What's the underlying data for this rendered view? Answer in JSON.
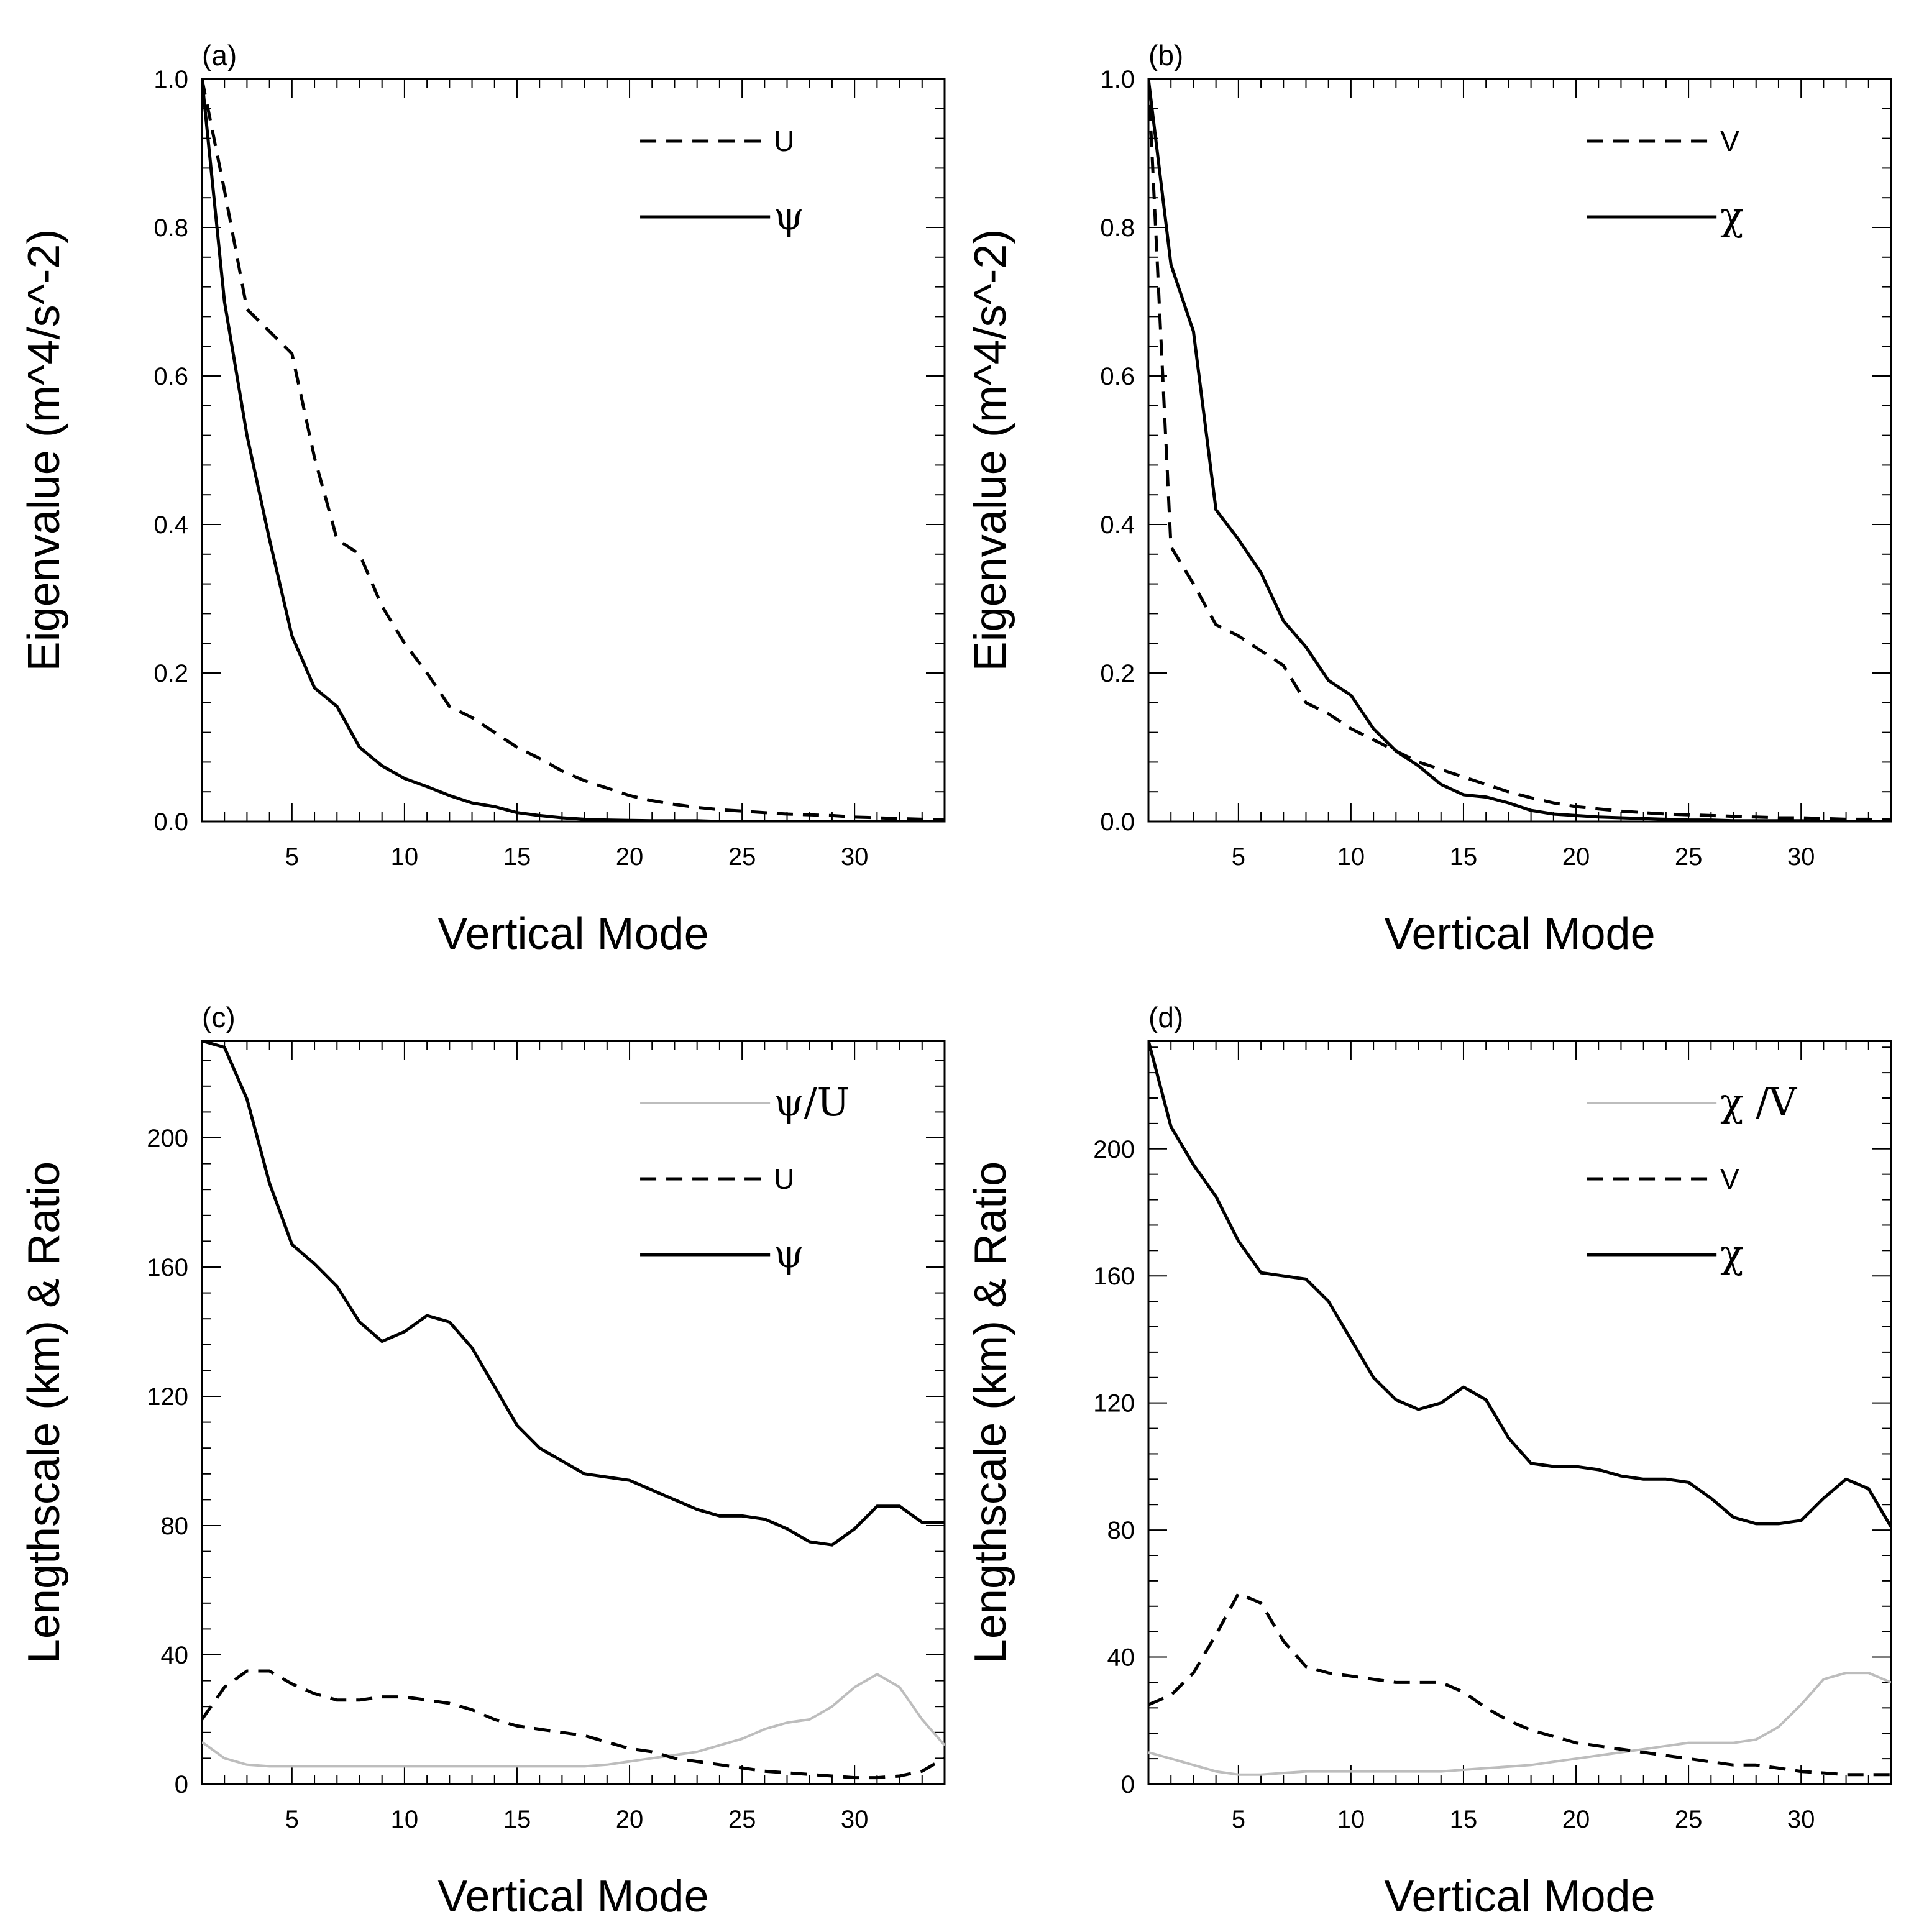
{
  "chart_data": [
    {
      "type": "line",
      "panel_label": "(a)",
      "xlabel": "Vertical Mode",
      "ylabel": "Eigenvalue (m^4/s^-2)",
      "xlim": [
        1,
        34
      ],
      "ylim": [
        0,
        1
      ],
      "x_ticks": [
        5,
        10,
        15,
        20,
        25,
        30
      ],
      "x_tick_labels": [
        "5",
        "10",
        "15",
        "20",
        "25",
        "30"
      ],
      "y_ticks": [
        0,
        0.2,
        0.4,
        0.6,
        0.8,
        1.0
      ],
      "y_tick_labels": [
        "0.0",
        "0.2",
        "0.4",
        "0.6",
        "0.8",
        "1.0"
      ],
      "legend_position": "top-right",
      "series": [
        {
          "name": "U",
          "legend_label": "U",
          "style": "dashed",
          "color": "#000000",
          "x": [
            1,
            2,
            3,
            4,
            5,
            6,
            7,
            8,
            9,
            10,
            11,
            12,
            13,
            14,
            15,
            16,
            17,
            18,
            19,
            20,
            21,
            22,
            23,
            24,
            25,
            26,
            27,
            28,
            29,
            30,
            31,
            32,
            33,
            34
          ],
          "values": [
            1.0,
            0.85,
            0.69,
            0.66,
            0.63,
            0.49,
            0.38,
            0.36,
            0.29,
            0.24,
            0.2,
            0.155,
            0.14,
            0.12,
            0.1,
            0.085,
            0.068,
            0.055,
            0.045,
            0.035,
            0.028,
            0.023,
            0.019,
            0.016,
            0.014,
            0.012,
            0.01,
            0.009,
            0.008,
            0.006,
            0.005,
            0.004,
            0.003,
            0.002
          ]
        },
        {
          "name": "ψ",
          "legend_label": "ψ",
          "style": "solid",
          "color": "#000000",
          "x": [
            1,
            2,
            3,
            4,
            5,
            6,
            7,
            8,
            9,
            10,
            11,
            12,
            13,
            14,
            15,
            16,
            17,
            18,
            19,
            20,
            21,
            22,
            23,
            24,
            25,
            26,
            27,
            28,
            29,
            30,
            31,
            32,
            33,
            34
          ],
          "values": [
            1.0,
            0.7,
            0.52,
            0.38,
            0.25,
            0.18,
            0.155,
            0.1,
            0.075,
            0.058,
            0.047,
            0.035,
            0.025,
            0.02,
            0.012,
            0.008,
            0.005,
            0.003,
            0.002,
            0.0015,
            0.001,
            0.001,
            0.001,
            0.0,
            0.0,
            0.0,
            0.0,
            0.0,
            0.0,
            0.0,
            0.0,
            0.0,
            0.0,
            0.0
          ]
        }
      ]
    },
    {
      "type": "line",
      "panel_label": "(b)",
      "xlabel": "Vertical Mode",
      "ylabel": "Eigenvalue (m^4/s^-2)",
      "xlim": [
        1,
        34
      ],
      "ylim": [
        0,
        1
      ],
      "x_ticks": [
        5,
        10,
        15,
        20,
        25,
        30
      ],
      "x_tick_labels": [
        "5",
        "10",
        "15",
        "20",
        "25",
        "30"
      ],
      "y_ticks": [
        0,
        0.2,
        0.4,
        0.6,
        0.8,
        1.0
      ],
      "y_tick_labels": [
        "0.0",
        "0.2",
        "0.4",
        "0.6",
        "0.8",
        "1.0"
      ],
      "legend_position": "top-right",
      "series": [
        {
          "name": "V",
          "legend_label": "V",
          "style": "dashed",
          "color": "#000000",
          "x": [
            1,
            2,
            3,
            4,
            5,
            6,
            7,
            8,
            9,
            10,
            11,
            12,
            13,
            14,
            15,
            16,
            17,
            18,
            19,
            20,
            21,
            22,
            23,
            24,
            25,
            26,
            27,
            28,
            29,
            30,
            31,
            32,
            33,
            34
          ],
          "values": [
            1.0,
            0.37,
            0.32,
            0.265,
            0.25,
            0.23,
            0.21,
            0.16,
            0.145,
            0.125,
            0.11,
            0.095,
            0.08,
            0.07,
            0.06,
            0.05,
            0.04,
            0.032,
            0.025,
            0.02,
            0.017,
            0.014,
            0.012,
            0.01,
            0.009,
            0.008,
            0.007,
            0.006,
            0.005,
            0.005,
            0.004,
            0.003,
            0.003,
            0.002
          ]
        },
        {
          "name": "χ",
          "legend_label": "χ",
          "style": "solid",
          "color": "#000000",
          "x": [
            1,
            2,
            3,
            4,
            5,
            6,
            7,
            8,
            9,
            10,
            11,
            12,
            13,
            14,
            15,
            16,
            17,
            18,
            19,
            20,
            21,
            22,
            23,
            24,
            25,
            26,
            27,
            28,
            29,
            30,
            31,
            32,
            33,
            34
          ],
          "values": [
            1.0,
            0.75,
            0.66,
            0.42,
            0.38,
            0.335,
            0.27,
            0.235,
            0.19,
            0.17,
            0.125,
            0.095,
            0.075,
            0.05,
            0.036,
            0.033,
            0.025,
            0.015,
            0.01,
            0.008,
            0.006,
            0.005,
            0.004,
            0.003,
            0.002,
            0.002,
            0.001,
            0.001,
            0.001,
            0.001,
            0.0,
            0.0,
            0.0,
            0.0
          ]
        }
      ]
    },
    {
      "type": "line",
      "panel_label": "(c)",
      "xlabel": "Vertical Mode",
      "ylabel": "Lengthscale (km) & Ratio",
      "xlim": [
        1,
        34
      ],
      "ylim": [
        0,
        230
      ],
      "x_ticks": [
        5,
        10,
        15,
        20,
        25,
        30
      ],
      "x_tick_labels": [
        "5",
        "10",
        "15",
        "20",
        "25",
        "30"
      ],
      "y_ticks": [
        0,
        40,
        80,
        120,
        160,
        200
      ],
      "y_tick_labels": [
        "0",
        "40",
        "80",
        "120",
        "160",
        "200"
      ],
      "legend_position": "top-right",
      "series": [
        {
          "name": "ψ/U",
          "legend_label": "ψ/U",
          "style": "solid",
          "color": "#bdbdbd",
          "x": [
            1,
            2,
            3,
            4,
            5,
            6,
            7,
            8,
            9,
            10,
            11,
            12,
            13,
            14,
            15,
            16,
            17,
            18,
            19,
            20,
            21,
            22,
            23,
            24,
            25,
            26,
            27,
            28,
            29,
            30,
            31,
            32,
            33,
            34
          ],
          "values": [
            13,
            8,
            6,
            5.5,
            5.5,
            5.5,
            5.5,
            5.5,
            5.5,
            5.5,
            5.5,
            5.5,
            5.5,
            5.5,
            5.5,
            5.5,
            5.5,
            5.5,
            6,
            7,
            8,
            9,
            10,
            12,
            14,
            17,
            19,
            20,
            24,
            30,
            34,
            30,
            20,
            12
          ]
        },
        {
          "name": "U",
          "legend_label": "U",
          "style": "dashed",
          "color": "#000000",
          "x": [
            1,
            2,
            3,
            4,
            5,
            6,
            7,
            8,
            9,
            10,
            11,
            12,
            13,
            14,
            15,
            16,
            17,
            18,
            19,
            20,
            21,
            22,
            23,
            24,
            25,
            26,
            27,
            28,
            29,
            30,
            31,
            32,
            33,
            34
          ],
          "values": [
            20,
            30,
            35,
            35,
            31,
            28,
            26,
            26,
            27,
            27,
            26,
            25,
            23,
            20,
            18,
            17,
            16,
            15,
            13,
            11,
            10,
            8,
            7,
            6,
            5,
            4,
            3.5,
            3,
            2.5,
            2,
            2,
            2.5,
            4,
            8
          ]
        },
        {
          "name": "ψ",
          "legend_label": "ψ",
          "style": "solid",
          "color": "#000000",
          "x": [
            1,
            2,
            3,
            4,
            5,
            6,
            7,
            8,
            9,
            10,
            11,
            12,
            13,
            14,
            15,
            16,
            17,
            18,
            19,
            20,
            21,
            22,
            23,
            24,
            25,
            26,
            27,
            28,
            29,
            30,
            31,
            32,
            33,
            34
          ],
          "values": [
            230,
            228,
            212,
            186,
            167,
            161,
            154,
            143,
            137,
            140,
            145,
            143,
            135,
            123,
            111,
            104,
            100,
            96,
            95,
            94,
            91,
            88,
            85,
            83,
            83,
            82,
            79,
            75,
            74,
            79,
            86,
            86,
            81,
            81
          ]
        }
      ]
    },
    {
      "type": "line",
      "panel_label": "(d)",
      "xlabel": "Vertical Mode",
      "ylabel": "Lengthscale (km) & Ratio",
      "xlim": [
        1,
        34
      ],
      "ylim": [
        0,
        234
      ],
      "x_ticks": [
        5,
        10,
        15,
        20,
        25,
        30
      ],
      "x_tick_labels": [
        "5",
        "10",
        "15",
        "20",
        "25",
        "30"
      ],
      "y_ticks": [
        0,
        40,
        80,
        120,
        160,
        200
      ],
      "y_tick_labels": [
        "0",
        "40",
        "80",
        "120",
        "160",
        "200"
      ],
      "legend_position": "top-right",
      "series": [
        {
          "name": "χ /V",
          "legend_label": "χ /V",
          "style": "solid",
          "color": "#bdbdbd",
          "x": [
            1,
            2,
            3,
            4,
            5,
            6,
            7,
            8,
            9,
            10,
            11,
            12,
            13,
            14,
            15,
            16,
            17,
            18,
            19,
            20,
            21,
            22,
            23,
            24,
            25,
            26,
            27,
            28,
            29,
            30,
            31,
            32,
            33,
            34
          ],
          "values": [
            10,
            8,
            6,
            4,
            3,
            3,
            3.5,
            4,
            4,
            4,
            4,
            4,
            4,
            4,
            4.5,
            5,
            5.5,
            6,
            7,
            8,
            9,
            10,
            11,
            12,
            13,
            13,
            13,
            14,
            18,
            25,
            33,
            35,
            35,
            32
          ]
        },
        {
          "name": "V",
          "legend_label": "V",
          "style": "dashed",
          "color": "#000000",
          "x": [
            1,
            2,
            3,
            4,
            5,
            6,
            7,
            8,
            9,
            10,
            11,
            12,
            13,
            14,
            15,
            16,
            17,
            18,
            19,
            20,
            21,
            22,
            23,
            24,
            25,
            26,
            27,
            28,
            29,
            30,
            31,
            32,
            33,
            34
          ],
          "values": [
            25,
            28,
            35,
            47,
            60,
            57,
            45,
            37,
            35,
            34,
            33,
            32,
            32,
            32,
            29,
            24,
            20,
            17,
            15,
            13,
            12,
            11,
            10,
            9,
            8,
            7,
            6,
            6,
            5,
            4,
            3.5,
            3,
            3,
            3
          ]
        },
        {
          "name": "χ",
          "legend_label": "χ",
          "style": "solid",
          "color": "#000000",
          "x": [
            1,
            2,
            3,
            4,
            5,
            6,
            7,
            8,
            9,
            10,
            11,
            12,
            13,
            14,
            15,
            16,
            17,
            18,
            19,
            20,
            21,
            22,
            23,
            24,
            25,
            26,
            27,
            28,
            29,
            30,
            31,
            32,
            33,
            34
          ],
          "values": [
            234,
            207,
            195,
            185,
            171,
            161,
            160,
            159,
            152,
            140,
            128,
            121,
            118,
            120,
            125,
            121,
            109,
            101,
            100,
            100,
            99,
            97,
            96,
            96,
            95,
            90,
            84,
            82,
            82,
            83,
            90,
            96,
            93,
            81
          ]
        }
      ]
    }
  ]
}
